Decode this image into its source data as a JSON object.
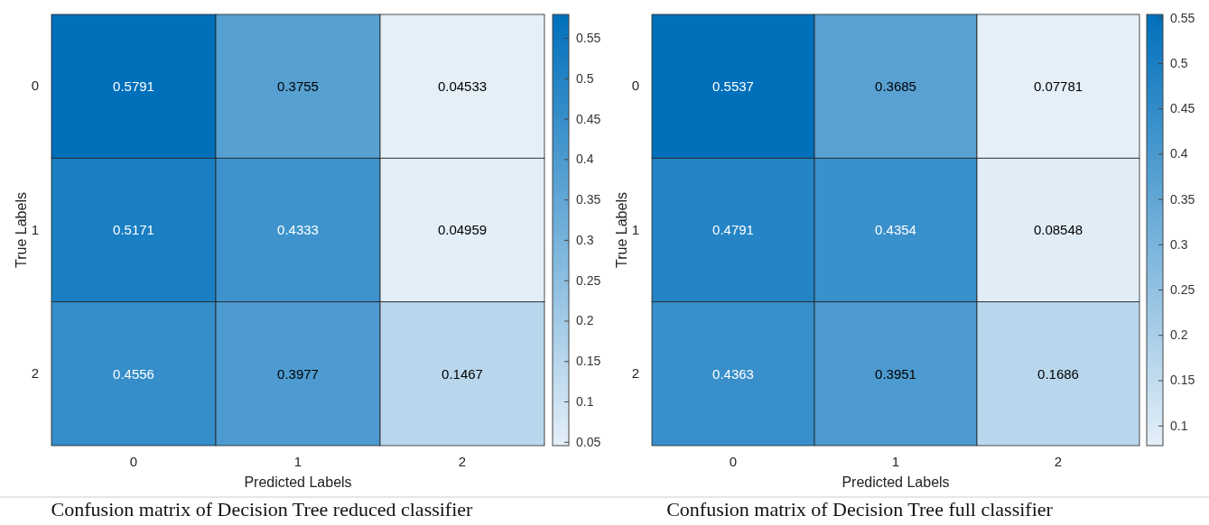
{
  "chart_data": [
    {
      "type": "heatmap",
      "title": "Confusion matrix of Decision Tree reduced classifier",
      "xlabel": "Predicted Labels",
      "ylabel": "True Labels",
      "categories": [
        "0",
        "1",
        "2"
      ],
      "y_categories": [
        "0",
        "1",
        "2"
      ],
      "cells": [
        [
          0.5791,
          0.3755,
          0.04533
        ],
        [
          0.5171,
          0.4333,
          0.04959
        ],
        [
          0.4556,
          0.3977,
          0.1467
        ]
      ],
      "clim": [
        0.04533,
        0.5791
      ],
      "cticks": [
        0.05,
        0.1,
        0.15,
        0.2,
        0.25,
        0.3,
        0.35,
        0.4,
        0.45,
        0.5,
        0.55
      ],
      "data_labels": true
    },
    {
      "type": "heatmap",
      "title": "Confusion matrix of Decision Tree full classifier",
      "xlabel": "Predicted Labels",
      "ylabel": "True Labels",
      "categories": [
        "0",
        "1",
        "2"
      ],
      "y_categories": [
        "0",
        "1",
        "2"
      ],
      "cells": [
        [
          0.5537,
          0.3685,
          0.07781
        ],
        [
          0.4791,
          0.4354,
          0.08548
        ],
        [
          0.4363,
          0.3951,
          0.1686
        ]
      ],
      "clim": [
        0.07781,
        0.5537
      ],
      "cticks": [
        0.1,
        0.15,
        0.2,
        0.25,
        0.3,
        0.35,
        0.4,
        0.45,
        0.5,
        0.55
      ],
      "data_labels": true
    }
  ]
}
